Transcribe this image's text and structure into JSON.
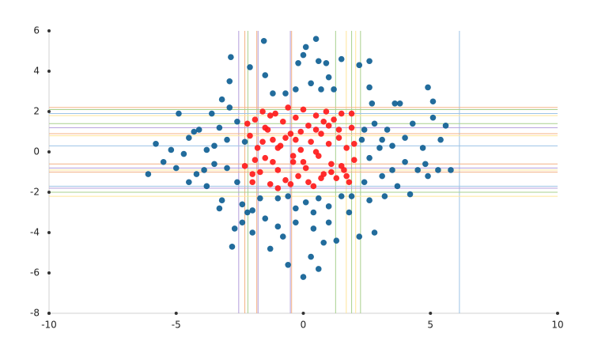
{
  "chart_data": {
    "type": "scatter",
    "xlim": [
      -10,
      10
    ],
    "ylim": [
      -8,
      6
    ],
    "xticks": [
      -10,
      -5,
      0,
      5,
      10
    ],
    "yticks": [
      -8,
      -6,
      -4,
      -2,
      0,
      2,
      4,
      6
    ],
    "series": [
      {
        "color": "#0f5f94",
        "x": [
          -6.1,
          -5.8,
          -5.5,
          -5.2,
          -5.0,
          -4.9,
          -4.7,
          -4.5,
          -4.2,
          -4.1,
          -3.8,
          -3.8,
          -3.6,
          -3.5,
          -3.3,
          -3.3,
          -3.2,
          -3.0,
          -3.0,
          -2.9,
          -2.7,
          -2.6,
          -2.6,
          -2.4,
          -2.3,
          -2.2,
          -2.1,
          -2.0,
          -3.2,
          -2.9,
          -2.8,
          -2.4,
          -2.0,
          -1.7,
          -1.5,
          -1.3,
          -1.5,
          -1.2,
          -2.85,
          -1.55,
          -0.8,
          -0.6,
          -0.3,
          -0.2,
          0.0,
          0.1,
          0.5,
          0.6,
          0.9,
          1.0,
          1.2,
          -0.7,
          -0.3,
          0.3,
          0.7,
          0.0,
          0.3,
          0.6,
          0.8,
          1.0,
          0.4,
          1.3,
          1.8,
          1.9,
          2.2,
          2.8,
          2.6,
          2.4,
          2.3,
          2.4,
          2.6,
          2.7,
          2.8,
          3.1,
          3.0,
          3.2,
          3.3,
          3.5,
          3.5,
          3.7,
          3.8,
          4.0,
          4.0,
          4.2,
          4.3,
          4.5,
          4.7,
          4.8,
          4.9,
          5.1,
          5.3,
          5.4,
          5.6,
          5.8,
          4.9,
          5.1,
          3.6,
          2.6,
          2.2,
          2.6,
          1.5,
          3.1,
          -4.3,
          -3.9,
          -4.5,
          -3.5,
          -1.0,
          -0.6,
          0.1,
          0.6,
          1.0,
          1.5,
          -0.3,
          0.4,
          -1.0
        ],
        "values": [
          -1.1,
          0.4,
          -0.5,
          0.1,
          -0.8,
          1.9,
          -0.1,
          0.7,
          -1.1,
          1.1,
          -1.7,
          0.1,
          1.9,
          -0.6,
          -2.8,
          1.2,
          -2.4,
          -0.8,
          0.6,
          2.2,
          -3.8,
          1.5,
          -1.5,
          -2.6,
          0.5,
          -3.0,
          4.2,
          -4.0,
          2.6,
          3.5,
          -4.7,
          -3.5,
          -2.9,
          -2.3,
          -3.3,
          -4.8,
          3.8,
          2.9,
          4.7,
          5.5,
          -4.2,
          -5.6,
          -3.5,
          4.4,
          4.8,
          5.2,
          5.6,
          4.5,
          4.4,
          3.7,
          3.1,
          2.9,
          3.1,
          3.4,
          3.1,
          -6.2,
          -5.2,
          -5.8,
          -4.5,
          -3.5,
          -3.0,
          -4.4,
          -3.0,
          -2.2,
          -4.2,
          -4.0,
          -2.4,
          -1.5,
          0.6,
          1.1,
          -0.3,
          2.4,
          1.4,
          -1.2,
          0.2,
          -2.2,
          1.1,
          0.3,
          -0.9,
          -1.7,
          2.4,
          0.7,
          -0.5,
          -2.1,
          1.4,
          -0.9,
          0.2,
          -0.6,
          -1.2,
          1.7,
          -0.9,
          0.6,
          1.3,
          -0.9,
          3.2,
          2.5,
          2.4,
          3.2,
          4.3,
          4.5,
          4.6,
          0.6,
          1.0,
          -0.9,
          -1.5,
          0.3,
          -2.3,
          -2.2,
          -2.5,
          -2.3,
          -2.7,
          -2.2,
          -2.8,
          -3.8,
          -3.7
        ]
      },
      {
        "color": "#ff1a1a",
        "x": [
          -2.3,
          -2.1,
          -2.0,
          -1.9,
          -1.8,
          -1.7,
          -1.6,
          -1.5,
          -1.4,
          -1.3,
          -1.2,
          -1.1,
          -1.0,
          -0.9,
          -0.8,
          -0.7,
          -0.6,
          -0.5,
          -0.4,
          -0.3,
          -0.2,
          -0.1,
          0.0,
          0.1,
          0.2,
          0.3,
          0.4,
          0.5,
          0.6,
          0.7,
          0.8,
          0.9,
          1.0,
          1.1,
          1.2,
          1.3,
          1.4,
          1.5,
          1.6,
          1.7,
          1.8,
          1.9,
          2.0,
          -2.2,
          -1.9,
          -1.6,
          -1.3,
          -1.0,
          -0.7,
          -0.4,
          -0.1,
          0.2,
          0.5,
          0.8,
          1.1,
          1.4,
          1.7,
          2.0,
          -2.0,
          -1.5,
          -1.0,
          -0.5,
          0.0,
          0.5,
          1.0,
          1.5,
          1.9,
          -1.2,
          -0.3,
          0.7
        ],
        "values": [
          -0.7,
          0.8,
          -1.5,
          1.6,
          0.2,
          -1.0,
          2.0,
          -0.3,
          1.1,
          -1.6,
          0.6,
          1.9,
          -0.9,
          0.3,
          1.5,
          -1.4,
          2.2,
          0.9,
          -0.5,
          1.7,
          -1.2,
          0.1,
          2.1,
          -0.8,
          1.3,
          0.5,
          -1.7,
          1.8,
          -0.2,
          0.9,
          -1.1,
          2.0,
          0.4,
          -0.6,
          1.6,
          -1.3,
          0.7,
          1.9,
          -0.9,
          0.2,
          -1.5,
          1.2,
          -0.4,
          1.4,
          -0.4,
          0.5,
          1.8,
          -1.8,
          0.7,
          -0.2,
          1.0,
          -1.5,
          0.0,
          1.5,
          -1.0,
          1.1,
          -1.2,
          0.4,
          -1.1,
          1.2,
          0.2,
          -1.6,
          -0.5,
          1.1,
          1.3,
          -0.7,
          1.9,
          -0.5,
          0.6,
          -1.3
        ]
      }
    ],
    "vlines": {
      "values": [
        -2.54,
        -2.3,
        -2.18,
        -1.83,
        -1.78,
        -0.51,
        -0.46,
        1.27,
        1.69,
        1.9,
        2.06,
        2.25,
        6.14
      ],
      "colors": [
        "#b39ddb",
        "#f4b183",
        "#a8d08d",
        "#f4b183",
        "#b39ddb",
        "#b39ddb",
        "#f4b183",
        "#a8d08d",
        "#ffe699",
        "#a8d08d",
        "#ffe699",
        "#a8d08d",
        "#9dc3e6"
      ]
    },
    "hlines": {
      "values": [
        2.2,
        2.1,
        1.9,
        1.8,
        1.4,
        1.2,
        0.9,
        0.8,
        0.3,
        -0.6,
        -0.8,
        -0.9,
        -1.0,
        -1.7,
        -1.8,
        -2.0,
        -2.2
      ],
      "colors": [
        "#f4b183",
        "#a8d08d",
        "#9dc3e6",
        "#ffe699",
        "#a8d08d",
        "#b39ddb",
        "#f4b183",
        "#ffe699",
        "#9dc3e6",
        "#f4b183",
        "#b39ddb",
        "#ffe699",
        "#f4b183",
        "#9dc3e6",
        "#b39ddb",
        "#a8d08d",
        "#ffe699"
      ]
    }
  }
}
